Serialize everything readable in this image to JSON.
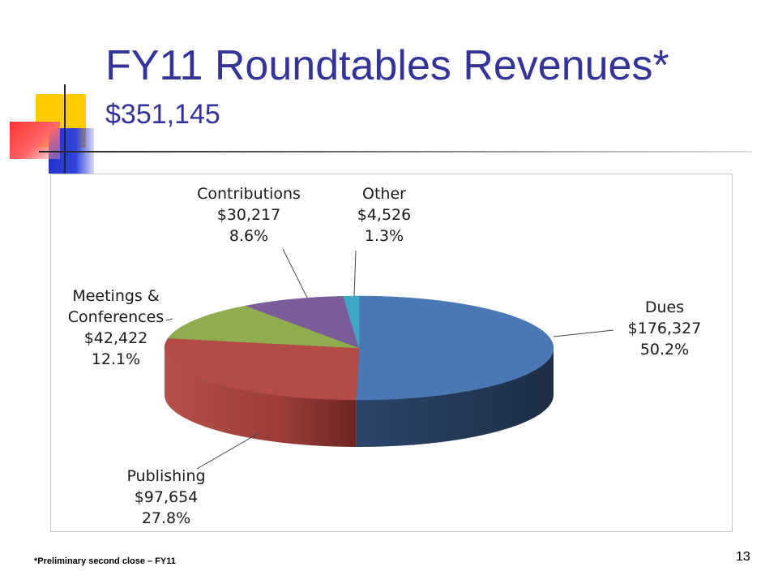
{
  "slide": {
    "title": "FY11 Roundtables Revenues*",
    "subtitle": "$351,145",
    "footnote": "*Preliminary second close – FY11",
    "page_number": "13"
  },
  "chart_data": {
    "type": "pie",
    "title": "",
    "total": 351145,
    "slices": [
      {
        "label": [
          "Dues"
        ],
        "amount": "$176,327",
        "value": 176327,
        "percent": "50.2%",
        "color": "#4a78b4",
        "side": "#24374f"
      },
      {
        "label": [
          "Publishing"
        ],
        "amount": "$97,654",
        "value": 97654,
        "percent": "27.8%",
        "color": "#b44b47",
        "side": "#8b3531"
      },
      {
        "label": [
          "Meetings &",
          "Conferences"
        ],
        "amount": "$42,422",
        "value": 42422,
        "percent": "12.1%",
        "color": "#8fad4f",
        "side": "#627a33"
      },
      {
        "label": [
          "Contributions"
        ],
        "amount": "$30,217",
        "value": 30217,
        "percent": "8.6%",
        "color": "#7a5c9b",
        "side": "#553f6d"
      },
      {
        "label": [
          "Other"
        ],
        "amount": "$4,526",
        "value": 4526,
        "percent": "1.3%",
        "color": "#3ea7c3",
        "side": "#2b7588"
      }
    ],
    "legend": "none",
    "grid": false
  }
}
